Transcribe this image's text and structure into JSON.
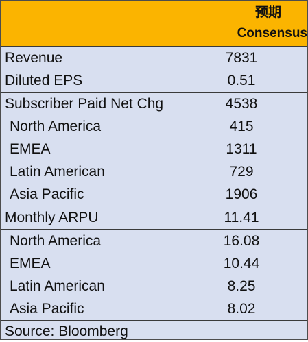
{
  "header": {
    "line1": "预期",
    "line2": "Consensus"
  },
  "sections": [
    {
      "rows": [
        {
          "label": "Revenue",
          "value": "7831",
          "sub": false
        },
        {
          "label": "Diluted EPS",
          "value": "0.51",
          "sub": false
        }
      ]
    },
    {
      "rows": [
        {
          "label": "Subscriber Paid Net Chg",
          "value": "4538",
          "sub": false
        },
        {
          "label": "North America",
          "value": "415",
          "sub": true
        },
        {
          "label": "EMEA",
          "value": "1311",
          "sub": true
        },
        {
          "label": "Latin American",
          "value": "729",
          "sub": true
        },
        {
          "label": "Asia Pacific",
          "value": "1906",
          "sub": true
        }
      ]
    },
    {
      "rows": [
        {
          "label": "Monthly ARPU",
          "value": "11.41",
          "sub": false
        }
      ]
    },
    {
      "rows": [
        {
          "label": "North America",
          "value": "16.08",
          "sub": true
        },
        {
          "label": "EMEA",
          "value": "10.44",
          "sub": true
        },
        {
          "label": "Latin American",
          "value": "8.25",
          "sub": true
        },
        {
          "label": "Asia Pacific",
          "value": "8.02",
          "sub": true
        }
      ]
    }
  ],
  "source": "Source: Bloomberg"
}
